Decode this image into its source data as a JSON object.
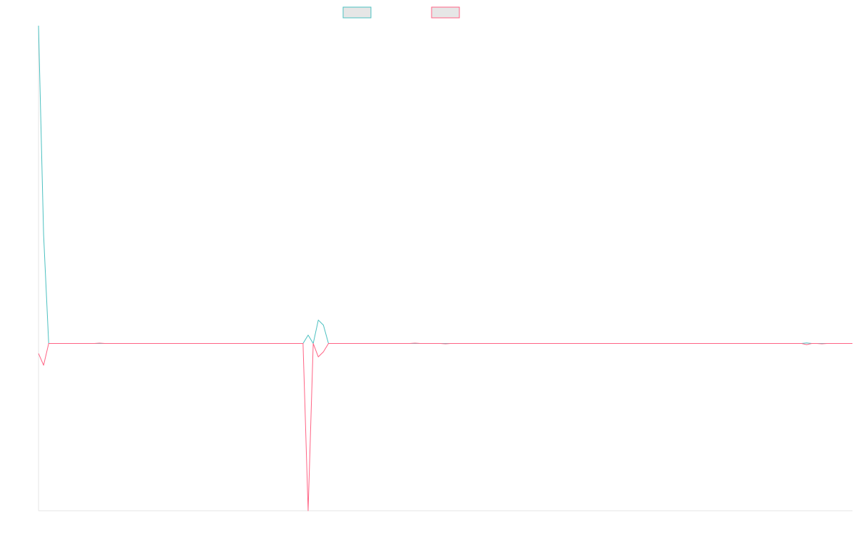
{
  "chart_data": {
    "type": "line",
    "title": "",
    "xlabel": "",
    "ylabel": "",
    "grid": false,
    "legend_position": "top-center",
    "x": [
      0,
      1,
      2,
      3,
      4,
      5,
      6,
      7,
      8,
      9,
      10,
      11,
      12,
      13,
      14,
      15,
      16,
      17,
      18,
      19,
      20,
      21,
      22,
      23,
      24,
      25,
      26,
      27,
      28,
      29,
      30,
      31,
      32,
      33,
      34,
      35,
      36,
      37,
      38,
      39,
      40,
      41,
      42,
      43,
      44,
      45,
      46,
      47,
      48,
      49,
      50,
      51,
      52,
      53,
      54,
      55,
      56,
      57,
      58,
      59,
      60,
      61,
      62,
      63,
      64,
      65,
      66,
      67,
      68,
      69,
      70,
      71,
      72,
      73,
      74,
      75,
      76,
      77,
      78,
      79,
      80,
      81,
      82,
      83,
      84,
      85,
      86,
      87,
      88,
      89,
      90,
      91,
      92,
      93,
      94,
      95,
      96,
      97,
      98,
      99,
      100,
      101,
      102,
      103,
      104,
      105,
      106,
      107,
      108,
      109,
      110,
      111,
      112,
      113,
      114,
      115,
      116,
      117,
      118,
      119,
      120,
      121,
      122,
      123,
      124,
      125,
      126,
      127,
      128,
      129,
      130,
      131,
      132,
      133,
      134,
      135,
      136,
      137,
      138,
      139,
      140,
      141,
      142,
      143,
      144,
      145,
      146,
      147,
      148,
      149,
      150,
      151,
      152,
      153,
      154,
      155,
      156,
      157,
      158,
      159,
      160
    ],
    "xlim": [
      0,
      160
    ],
    "ylim": [
      -100,
      190
    ],
    "series": [
      {
        "name": "",
        "color": "#4bc0c0",
        "values": [
          190,
          65,
          0,
          0,
          0,
          0,
          0,
          0,
          0,
          0,
          0,
          0,
          0,
          0,
          0,
          0,
          0,
          0,
          0,
          0,
          0,
          0,
          0,
          0,
          0,
          0,
          0,
          0,
          0,
          0,
          0,
          0,
          0,
          0,
          0,
          0,
          0,
          0,
          0,
          0,
          0,
          0,
          0,
          0,
          0,
          0,
          0,
          0,
          0,
          0,
          0,
          0,
          0,
          5,
          0,
          14,
          11,
          0,
          0,
          0,
          0,
          0,
          0,
          0,
          0,
          0,
          0,
          0,
          0,
          0,
          0,
          0,
          0,
          0,
          0,
          0,
          0,
          0,
          0,
          0,
          0,
          0,
          0,
          0,
          0,
          0,
          0,
          0,
          0,
          0,
          0,
          0,
          0,
          0,
          0,
          0,
          0,
          0,
          0,
          0,
          0,
          0,
          0,
          0,
          0,
          0,
          0,
          0,
          0,
          0,
          0,
          0,
          0,
          0,
          0,
          0,
          0,
          0,
          0,
          0,
          0,
          0,
          0,
          0,
          0,
          0,
          0,
          0,
          0,
          0,
          0,
          0,
          0,
          0,
          0,
          0,
          0,
          0,
          0,
          0,
          0,
          0,
          0,
          0,
          0,
          0,
          0,
          0,
          0,
          0,
          0,
          0.3,
          0,
          0,
          0,
          0,
          0,
          0,
          0,
          0,
          0
        ]
      },
      {
        "name": "",
        "color": "#ff6384",
        "values": [
          -6,
          -13,
          0,
          0,
          0,
          0,
          0,
          0,
          0,
          0,
          0,
          0,
          0.2,
          0,
          0,
          0,
          0,
          0,
          0,
          0,
          0,
          0,
          0,
          0,
          0,
          0,
          0,
          0,
          0,
          0,
          0,
          0,
          0,
          0,
          0,
          0,
          0,
          0,
          0,
          0,
          0,
          0,
          0,
          0,
          0,
          0,
          0,
          0,
          0,
          0,
          0,
          0,
          0,
          -100,
          0,
          -8,
          -5,
          0,
          0,
          0,
          0,
          0,
          0,
          0,
          0,
          0,
          0,
          0,
          0,
          0,
          0,
          0,
          0,
          0,
          0.2,
          0,
          0,
          0,
          0,
          0,
          -0.2,
          0,
          0,
          0,
          0,
          0,
          0,
          0,
          0,
          0,
          0,
          0,
          0,
          0,
          0,
          0,
          0,
          0,
          0,
          0,
          0,
          0,
          0,
          0,
          0,
          0,
          0,
          0,
          0,
          0,
          0,
          0,
          0,
          0,
          0,
          0,
          0,
          0,
          0,
          0,
          0,
          0,
          0,
          0,
          0,
          0,
          0,
          0,
          0,
          0,
          0,
          0,
          0,
          0,
          0,
          0,
          0,
          0,
          0,
          0,
          0,
          0,
          0,
          0,
          0,
          0,
          0,
          0,
          0,
          0,
          0,
          -0.7,
          0,
          0,
          -0.2,
          0,
          0,
          0,
          0,
          0,
          0
        ]
      }
    ]
  }
}
